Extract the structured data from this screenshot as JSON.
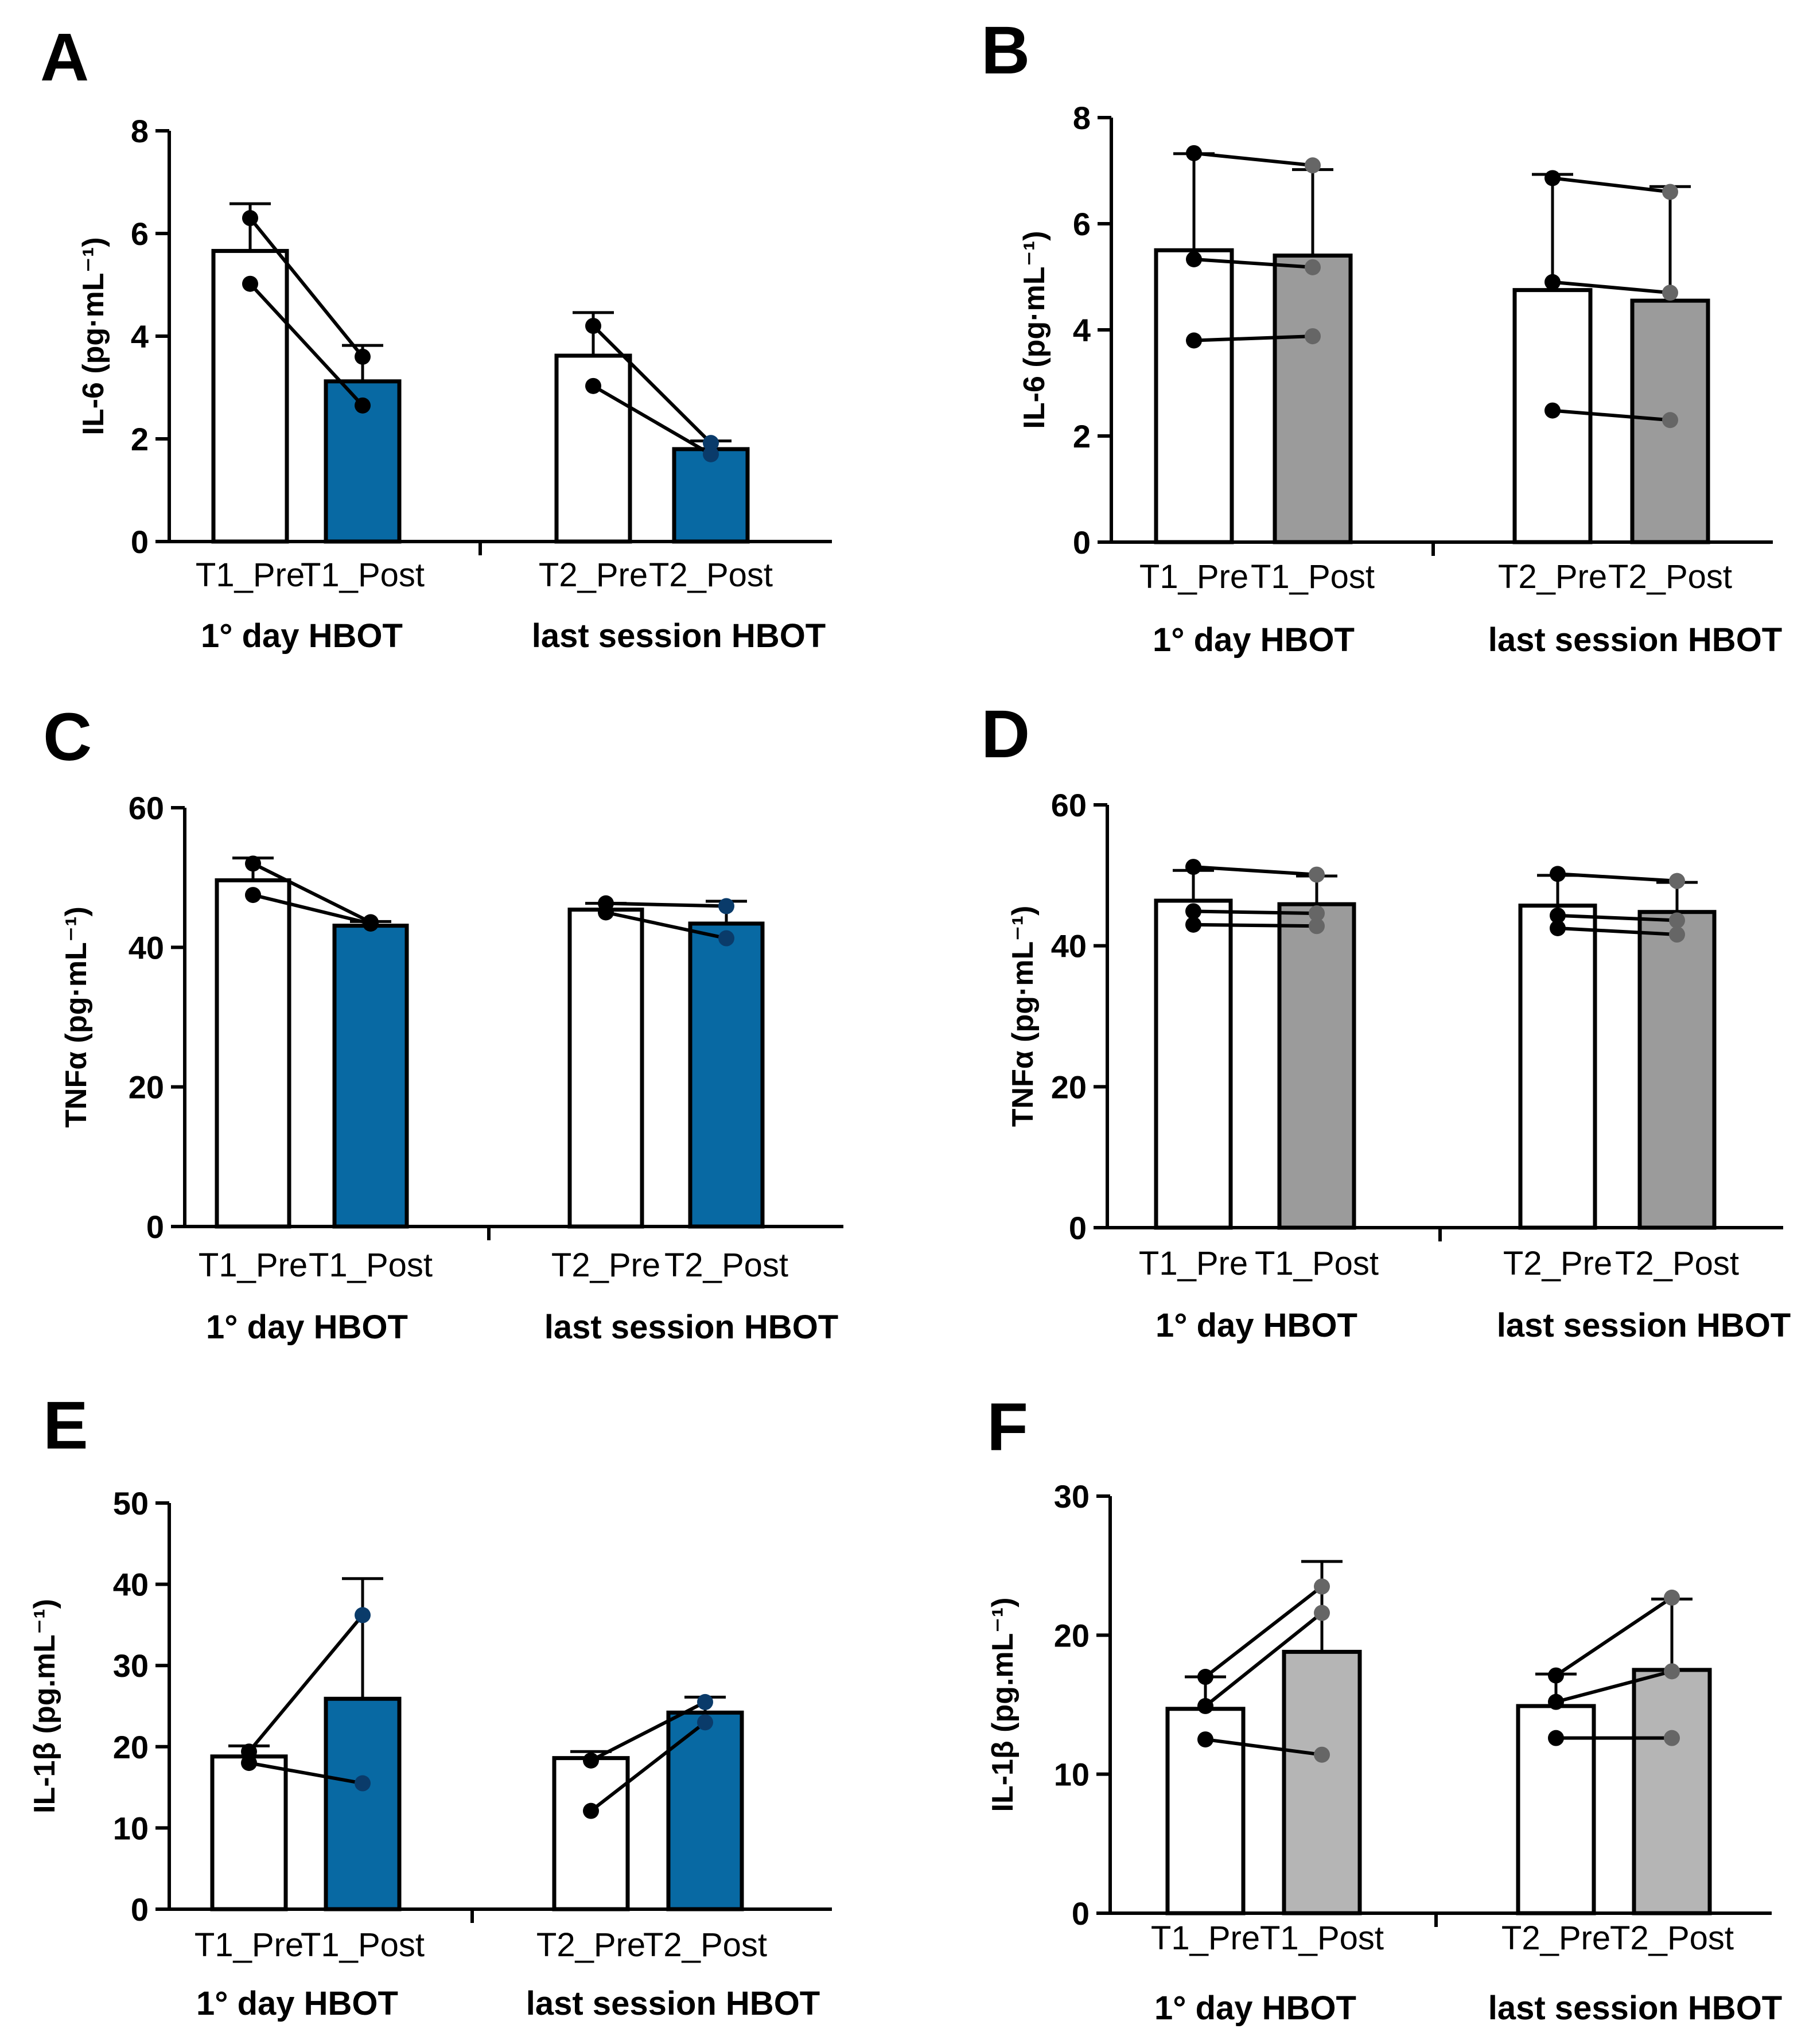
{
  "colors": {
    "blue": "#0869a3",
    "gray_dark": "#9b9b9b",
    "gray_light": "#b5b5b5",
    "white": "#ffffff",
    "black": "#000000"
  },
  "chart_data": [
    {
      "id": "A",
      "letter": "A",
      "type": "bar",
      "ylabel": "IL-6  (pg·mL⁻¹)",
      "ylim": [
        0,
        8
      ],
      "yticks": [
        "0",
        "2",
        "4",
        "6",
        "8"
      ],
      "categories": [
        "T1_Pre",
        "T1_Post",
        "T2_Pre",
        "T2_Post"
      ],
      "groups": [
        "1° day HBOT",
        "last session HBOT"
      ],
      "values": [
        5.66,
        3.12,
        3.62,
        1.8
      ],
      "errors": [
        0.92,
        0.7,
        0.84,
        0.16
      ],
      "post_fill": "blue",
      "point_color": [
        "#000000",
        "#000000",
        "#000000",
        "#0a3b6a"
      ],
      "subjects": [
        [
          6.3,
          3.6,
          4.2,
          1.92
        ],
        [
          5.02,
          2.65,
          3.03,
          1.7
        ]
      ]
    },
    {
      "id": "B",
      "letter": "B",
      "type": "bar",
      "ylabel": "IL-6  (pg·mL⁻¹)",
      "ylim": [
        0,
        8
      ],
      "yticks": [
        "0",
        "2",
        "4",
        "6",
        "8"
      ],
      "categories": [
        "T1_Pre",
        "T1_Post",
        "T2_Pre",
        "T2_Post"
      ],
      "groups": [
        "1° day HBOT",
        "last session HBOT"
      ],
      "values": [
        5.5,
        5.4,
        4.75,
        4.55
      ],
      "errors": [
        1.82,
        1.62,
        2.18,
        2.15
      ],
      "post_fill": "gray_dark",
      "point_color": [
        "#000000",
        "#666666",
        "#000000",
        "#666666"
      ],
      "subjects": [
        [
          7.33,
          7.1,
          6.86,
          6.6
        ],
        [
          5.33,
          5.18,
          4.9,
          4.7
        ],
        [
          3.8,
          3.88,
          2.48,
          2.3
        ]
      ]
    },
    {
      "id": "C",
      "letter": "C",
      "type": "bar",
      "ylabel": "TNFα  (pg·mL⁻¹)",
      "ylim": [
        0,
        60
      ],
      "yticks": [
        "0",
        "20",
        "40",
        "60"
      ],
      "categories": [
        "T1_Pre",
        "T1_Post",
        "T2_Pre",
        "T2_Post"
      ],
      "groups": [
        "1° day HBOT",
        "last session HBOT"
      ],
      "values": [
        49.6,
        43.1,
        45.4,
        43.4
      ],
      "errors": [
        3.2,
        0.6,
        0.9,
        3.2
      ],
      "post_fill": "blue",
      "point_color": [
        "#000000",
        "#000000",
        "#000000",
        "#0a3b6a"
      ],
      "subjects": [
        [
          52.0,
          43.6,
          46.3,
          45.9
        ],
        [
          47.5,
          43.4,
          45.0,
          41.3
        ]
      ]
    },
    {
      "id": "D",
      "letter": "D",
      "type": "bar",
      "ylabel": "TNFα  (pg·mL⁻¹)",
      "ylim": [
        0,
        60
      ],
      "yticks": [
        "0",
        "20",
        "40",
        "60"
      ],
      "categories": [
        "T1_Pre",
        "T1_Post",
        "T2_Pre",
        "T2_Post"
      ],
      "groups": [
        "1° day HBOT",
        "last session HBOT"
      ],
      "values": [
        46.4,
        45.9,
        45.7,
        44.8
      ],
      "errors": [
        4.3,
        4.0,
        4.3,
        4.2
      ],
      "post_fill": "gray_dark",
      "point_color": [
        "#000000",
        "#666666",
        "#000000",
        "#666666"
      ],
      "subjects": [
        [
          51.2,
          50.1,
          50.2,
          49.2
        ],
        [
          44.9,
          44.6,
          44.3,
          43.6
        ],
        [
          43.0,
          42.8,
          42.5,
          41.6
        ]
      ]
    },
    {
      "id": "E",
      "letter": "E",
      "type": "bar",
      "ylabel": "IL-1β  (pg.mL⁻¹)",
      "ylim": [
        0,
        50
      ],
      "yticks": [
        "0",
        "10",
        "20",
        "30",
        "40",
        "50"
      ],
      "categories": [
        "T1_Pre",
        "T1_Post",
        "T2_Pre",
        "T2_Post"
      ],
      "groups": [
        "1° day HBOT",
        "last session HBOT"
      ],
      "values": [
        18.8,
        25.9,
        18.6,
        24.2
      ],
      "errors": [
        1.3,
        14.8,
        0.8,
        1.9
      ],
      "post_fill": "blue",
      "point_color": [
        "#000000",
        "#0a3b6a",
        "#000000",
        "#0a3b6a"
      ],
      "subjects": [
        [
          19.4,
          36.2,
          18.3,
          25.5
        ],
        [
          18.0,
          15.5,
          12.1,
          23.0
        ]
      ]
    },
    {
      "id": "F",
      "letter": "F",
      "type": "bar",
      "ylabel": "IL-1β  (pg.mL⁻¹)",
      "ylim": [
        0,
        30
      ],
      "yticks": [
        "0",
        "10",
        "20",
        "30"
      ],
      "categories": [
        "T1_Pre",
        "T1_Post",
        "T2_Pre",
        "T2_Post"
      ],
      "groups": [
        "1° day HBOT",
        "last session HBOT"
      ],
      "values": [
        14.7,
        18.8,
        14.9,
        17.5
      ],
      "errors": [
        2.3,
        6.5,
        2.3,
        5.1
      ],
      "post_fill": "gray_light",
      "point_color": [
        "#000000",
        "#666666",
        "#000000",
        "#666666"
      ],
      "subjects": [
        [
          17.0,
          23.5,
          17.1,
          22.7
        ],
        [
          14.9,
          21.6,
          15.2,
          17.4
        ],
        [
          12.5,
          11.4,
          12.6,
          12.6
        ]
      ]
    }
  ]
}
